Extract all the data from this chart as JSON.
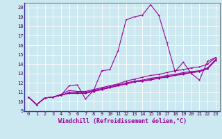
{
  "title": "",
  "xlabel": "Windchill (Refroidissement éolien,°C)",
  "background_color": "#cce8f0",
  "line_color": "#990099",
  "grid_color": "#ffffff",
  "xlim": [
    -0.5,
    23.5
  ],
  "ylim": [
    9,
    20.5
  ],
  "xticks": [
    0,
    1,
    2,
    3,
    4,
    5,
    6,
    7,
    8,
    9,
    10,
    11,
    12,
    13,
    14,
    15,
    16,
    17,
    18,
    19,
    20,
    21,
    22,
    23
  ],
  "yticks": [
    9,
    10,
    11,
    12,
    13,
    14,
    15,
    16,
    17,
    18,
    19,
    20
  ],
  "series": [
    [
      10.5,
      9.7,
      10.4,
      10.5,
      10.7,
      11.7,
      11.8,
      10.3,
      11.2,
      13.3,
      13.4,
      15.4,
      18.7,
      19.0,
      19.2,
      20.3,
      19.2,
      16.3,
      13.2,
      14.2,
      13.0,
      12.3,
      14.3,
      14.7
    ],
    [
      10.5,
      9.7,
      10.4,
      10.5,
      10.8,
      11.2,
      11.1,
      11.1,
      11.3,
      11.5,
      11.7,
      11.9,
      12.2,
      12.4,
      12.6,
      12.8,
      12.9,
      13.1,
      13.3,
      13.4,
      13.6,
      13.7,
      14.0,
      14.7
    ],
    [
      10.5,
      9.7,
      10.4,
      10.5,
      10.7,
      11.0,
      11.0,
      11.0,
      11.2,
      11.4,
      11.6,
      11.8,
      12.0,
      12.2,
      12.3,
      12.5,
      12.6,
      12.8,
      12.9,
      13.1,
      13.2,
      13.3,
      13.6,
      14.5
    ],
    [
      10.5,
      9.7,
      10.4,
      10.5,
      10.7,
      10.9,
      10.9,
      10.9,
      11.1,
      11.3,
      11.5,
      11.7,
      11.9,
      12.1,
      12.2,
      12.4,
      12.5,
      12.7,
      12.8,
      13.0,
      13.1,
      13.2,
      13.5,
      14.4
    ],
    [
      10.5,
      9.7,
      10.4,
      10.5,
      10.7,
      10.9,
      10.9,
      10.9,
      11.1,
      11.3,
      11.5,
      11.7,
      11.9,
      12.1,
      12.2,
      12.3,
      12.5,
      12.6,
      12.8,
      12.9,
      13.1,
      13.2,
      13.5,
      14.4
    ]
  ],
  "markersize": 2.0,
  "linewidth": 0.8,
  "tick_fontsize": 5.0,
  "xlabel_fontsize": 6.0
}
